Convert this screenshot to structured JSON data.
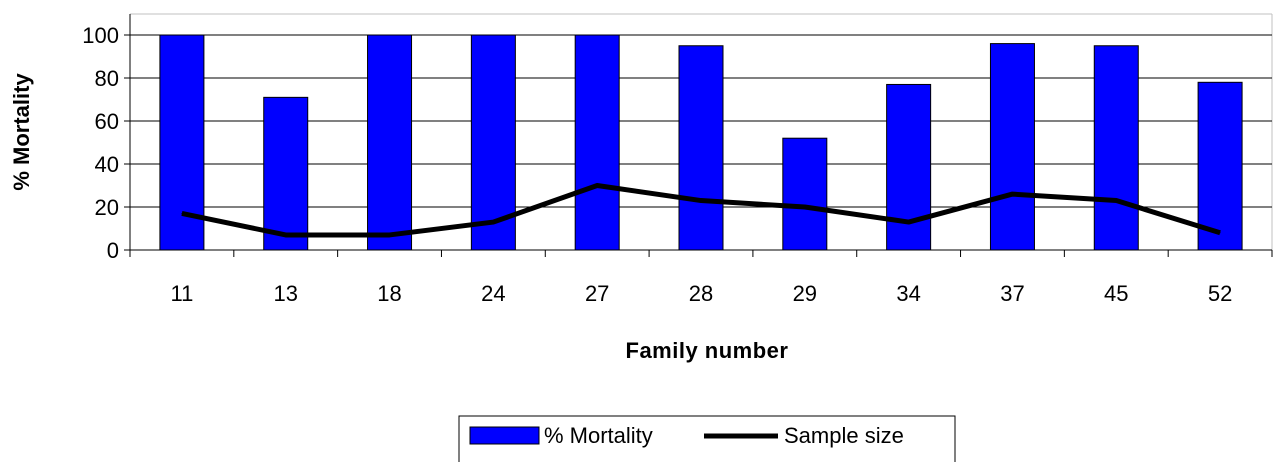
{
  "chart_data": {
    "type": "bar",
    "categories": [
      "11",
      "13",
      "18",
      "24",
      "27",
      "28",
      "29",
      "34",
      "37",
      "45",
      "52"
    ],
    "series": [
      {
        "name": "% Mortality",
        "kind": "bar",
        "color": "#0000ff",
        "values": [
          100,
          71,
          100,
          100,
          100,
          95,
          52,
          77,
          96,
          95,
          78
        ]
      },
      {
        "name": "Sample size",
        "kind": "line",
        "color": "#000000",
        "values": [
          17,
          7,
          7,
          13,
          30,
          23,
          20,
          13,
          26,
          23,
          8
        ]
      }
    ],
    "xlabel": "Family number",
    "ylabel": "% Mortality",
    "ylim": [
      0,
      100
    ],
    "yticks": [
      "0",
      "20",
      "40",
      "60",
      "80",
      "100"
    ],
    "grid": true,
    "legend": "bottom"
  }
}
